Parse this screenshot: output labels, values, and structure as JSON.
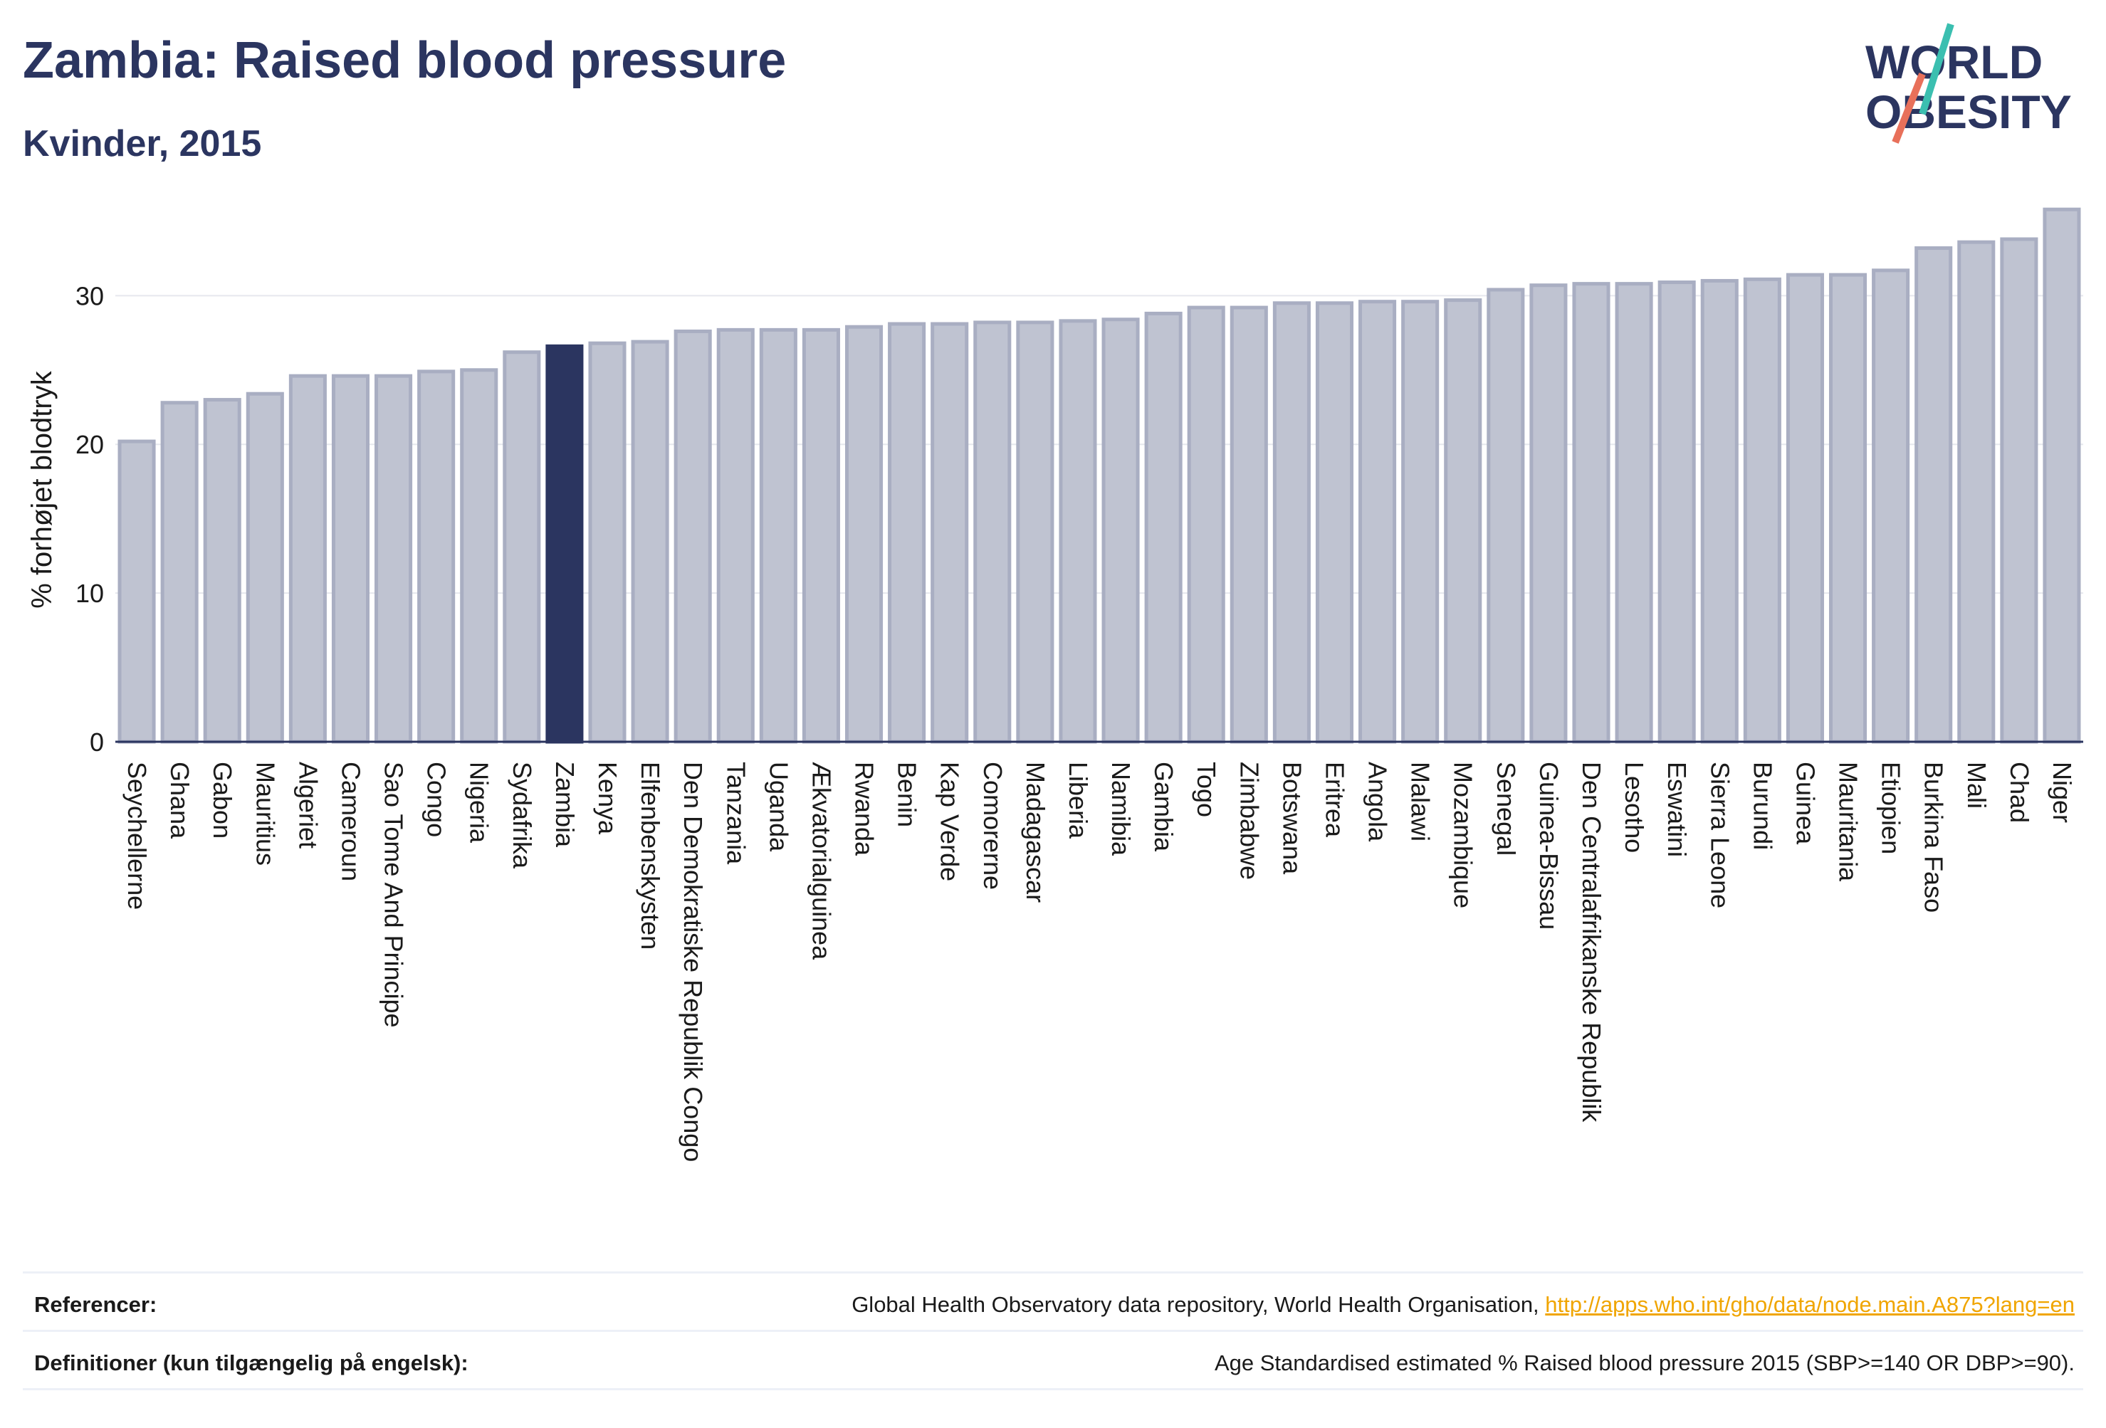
{
  "header": {
    "title": "Zambia: Raised blood pressure",
    "subtitle": "Kvinder, 2015"
  },
  "logo": {
    "line1": "WORLD",
    "line2": "OBESITY",
    "icon": "world-obesity-slash-logo"
  },
  "colors": {
    "bar_default": "#bfc3d1",
    "bar_default_stroke": "#a9aec2",
    "bar_highlight": "#2b3560",
    "text": "#2b3560",
    "grid": "#e6e8ee",
    "link": "#f0a500"
  },
  "chart_data": {
    "type": "bar",
    "title": "Zambia: Raised blood pressure",
    "subtitle": "Kvinder, 2015",
    "xlabel": "",
    "ylabel": "% forhøjet blodtryk",
    "ylim": [
      0,
      36
    ],
    "yticks": [
      0,
      10,
      20,
      30
    ],
    "grid": true,
    "highlight": "Zambia",
    "categories": [
      "Seychellerne",
      "Ghana",
      "Gabon",
      "Mauritius",
      "Algeriet",
      "Cameroun",
      "Sao Tome And Principe",
      "Congo",
      "Nigeria",
      "Sydafrika",
      "Zambia",
      "Kenya",
      "Elfenbenskysten",
      "Den Demokratiske Republik Congo",
      "Tanzania",
      "Uganda",
      "Ækvatorialguinea",
      "Rwanda",
      "Benin",
      "Kap Verde",
      "Comorerne",
      "Madagascar",
      "Liberia",
      "Namibia",
      "Gambia",
      "Togo",
      "Zimbabwe",
      "Botswana",
      "Eritrea",
      "Angola",
      "Malawi",
      "Mozambique",
      "Senegal",
      "Guinea-Bissau",
      "Den Centralafrikanske Republik",
      "Lesotho",
      "Eswatini",
      "Sierra Leone",
      "Burundi",
      "Guinea",
      "Mauritania",
      "Etiopien",
      "Burkina Faso",
      "Mali",
      "Chad",
      "Niger"
    ],
    "values": [
      20.2,
      22.8,
      23.0,
      23.4,
      24.6,
      24.6,
      24.6,
      24.9,
      25.0,
      26.2,
      26.6,
      26.8,
      26.9,
      27.6,
      27.7,
      27.7,
      27.7,
      27.9,
      28.1,
      28.1,
      28.2,
      28.2,
      28.3,
      28.4,
      28.8,
      29.2,
      29.2,
      29.5,
      29.5,
      29.6,
      29.6,
      29.7,
      30.4,
      30.7,
      30.8,
      30.8,
      30.9,
      31.0,
      31.1,
      31.4,
      31.4,
      31.7,
      33.2,
      33.6,
      33.8,
      35.8
    ]
  },
  "footer": {
    "references_label": "Referencer:",
    "references_text": "Global Health Observatory data repository, World Health Organisation, ",
    "references_link": "http://apps.who.int/gho/data/node.main.A875?lang=en",
    "definitions_label": "Definitioner (kun tilgængelig på engelsk):",
    "definitions_text": "Age Standardised estimated % Raised blood pressure 2015 (SBP>=140 OR DBP>=90)."
  }
}
